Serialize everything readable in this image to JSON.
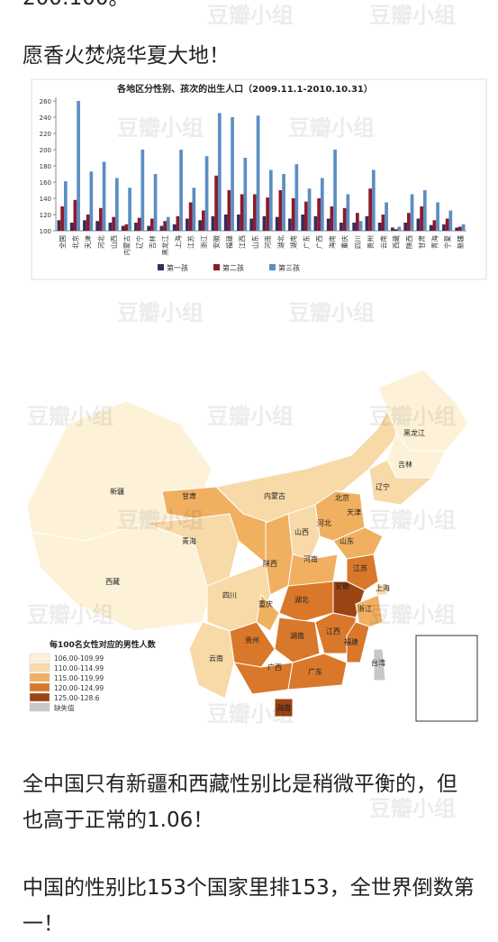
{
  "top_text": "200:100。",
  "intro": "愿香火焚烧华夏大地！",
  "chart_data": {
    "type": "bar",
    "title": "各地区分性别、孩次的出生人口（2009.11.1-2010.10.31）",
    "categories": [
      "全国",
      "北京",
      "天津",
      "河北",
      "山西",
      "内蒙古",
      "辽宁",
      "吉林",
      "黑龙江",
      "上海",
      "江苏",
      "浙江",
      "安徽",
      "福建",
      "江西",
      "山东",
      "河南",
      "湖北",
      "湖南",
      "广东",
      "广西",
      "海南",
      "重庆",
      "四川",
      "贵州",
      "云南",
      "西藏",
      "陕西",
      "甘肃",
      "青海",
      "宁夏",
      "新疆"
    ],
    "series": [
      {
        "name": "第一孩",
        "color": "#3b2a5a",
        "values": [
          113,
          110,
          113,
          112,
          110,
          106,
          110,
          106,
          106,
          108,
          115,
          113,
          118,
          120,
          120,
          115,
          118,
          117,
          115,
          120,
          118,
          115,
          110,
          110,
          118,
          110,
          104,
          110,
          115,
          107,
          108,
          104
        ]
      },
      {
        "name": "第二孩",
        "color": "#8b1a2a",
        "values": [
          130,
          138,
          120,
          128,
          117,
          108,
          116,
          115,
          112,
          118,
          135,
          125,
          168,
          150,
          145,
          145,
          141,
          150,
          140,
          136,
          140,
          130,
          128,
          122,
          152,
          120,
          102,
          122,
          130,
          113,
          115,
          105
        ]
      },
      {
        "name": "第三孩",
        "color": "#5b8ec4",
        "values": [
          161,
          260,
          173,
          185,
          165,
          153,
          200,
          170,
          117,
          200,
          153,
          192,
          245,
          240,
          190,
          242,
          175,
          170,
          182,
          152,
          165,
          200,
          145,
          112,
          175,
          135,
          105,
          145,
          150,
          135,
          125,
          108
        ]
      }
    ],
    "ylim": [
      100,
      260
    ],
    "yticks": [
      100,
      120,
      140,
      160,
      180,
      200,
      220,
      240,
      260
    ],
    "grid": false
  },
  "map": {
    "legend_title": "每100名女性对应的男性人数",
    "legend": [
      {
        "label": "106.00-109.99",
        "color": "#fdf2d8"
      },
      {
        "label": "110.00-114.99",
        "color": "#f8d9a8"
      },
      {
        "label": "115.00-119.99",
        "color": "#f0b060"
      },
      {
        "label": "120.00-124.99",
        "color": "#d9782a"
      },
      {
        "label": "125.00-128.6",
        "color": "#9b4413"
      },
      {
        "label": "缺失值",
        "color": "#c8c8c8"
      }
    ],
    "provinces": [
      {
        "name": "新疆",
        "color": "#fdf2d8"
      },
      {
        "name": "西藏",
        "color": "#fdf2d8"
      },
      {
        "name": "青海",
        "color": "#f8d9a8"
      },
      {
        "name": "甘肃",
        "color": "#f0b060"
      },
      {
        "name": "内蒙古",
        "color": "#f8d9a8"
      },
      {
        "name": "黑龙江",
        "color": "#fdf2d8"
      },
      {
        "name": "吉林",
        "color": "#fdf2d8"
      },
      {
        "name": "辽宁",
        "color": "#f8d9a8"
      },
      {
        "name": "北京",
        "color": "#f8d9a8"
      },
      {
        "name": "天津",
        "color": "#f8d9a8"
      },
      {
        "name": "河北",
        "color": "#f0b060"
      },
      {
        "name": "山西",
        "color": "#f8d9a8"
      },
      {
        "name": "山东",
        "color": "#f0b060"
      },
      {
        "name": "陕西",
        "color": "#f0b060"
      },
      {
        "name": "河南",
        "color": "#f0b060"
      },
      {
        "name": "江苏",
        "color": "#d9782a"
      },
      {
        "name": "上海",
        "color": "#f8d9a8"
      },
      {
        "name": "安徽",
        "color": "#9b4413"
      },
      {
        "name": "湖北",
        "color": "#d9782a"
      },
      {
        "name": "四川",
        "color": "#f8d9a8"
      },
      {
        "name": "重庆",
        "color": "#f0b060"
      },
      {
        "name": "浙江",
        "color": "#f0b060"
      },
      {
        "name": "江西",
        "color": "#d9782a"
      },
      {
        "name": "湖南",
        "color": "#d9782a"
      },
      {
        "name": "贵州",
        "color": "#d9782a"
      },
      {
        "name": "云南",
        "color": "#f8d9a8"
      },
      {
        "name": "广西",
        "color": "#d9782a"
      },
      {
        "name": "广东",
        "color": "#d9782a"
      },
      {
        "name": "福建",
        "color": "#d9782a"
      },
      {
        "name": "海南",
        "color": "#9b4413"
      },
      {
        "name": "台湾",
        "color": "#c8c8c8"
      }
    ]
  },
  "paragraphs": [
    "全中国只有新疆和西藏性别比是稍微平衡的，但也高于正常的1.06！",
    "中国的性别比153个国家里排153，全世界倒数第一！"
  ],
  "watermark": "豆瓣小组"
}
